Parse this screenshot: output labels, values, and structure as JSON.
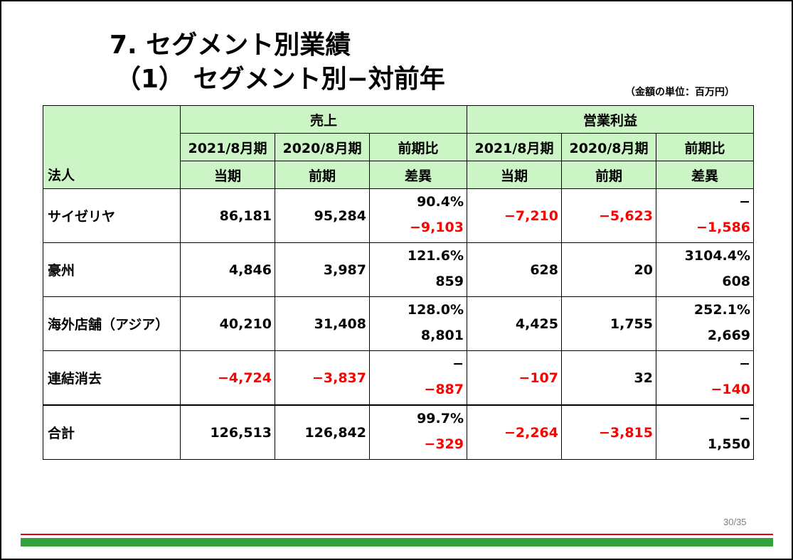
{
  "title": "7. セグメント別業績",
  "subtitle": "（1） セグメント別−対前年",
  "unit_note": "（金額の単位：百万円）",
  "header": {
    "corner": "法人",
    "group_sales": "売上",
    "group_profit": "営業利益",
    "sales": {
      "c1_l1": "2021/8月期",
      "c1_l2": "当期",
      "c2_l1": "2020/8月期",
      "c2_l2": "前期",
      "c3_l1": "前期比",
      "c3_l2": "差異"
    },
    "profit": {
      "c1_l1": "2021/8月期",
      "c1_l2": "当期",
      "c2_l1": "2020/8月期",
      "c2_l2": "前期",
      "c3_l1": "前期比",
      "c3_l2": "差異"
    }
  },
  "rows": [
    {
      "name": "サイゼリヤ",
      "sales_cur": "86,181",
      "sales_prev": "95,284",
      "sales_ratio": "90.4%",
      "sales_diff": "−9,103",
      "profit_cur": "−7,210",
      "profit_prev": "−5,623",
      "profit_ratio": "−",
      "profit_diff": "−1,586"
    },
    {
      "name": "豪州",
      "sales_cur": "4,846",
      "sales_prev": "3,987",
      "sales_ratio": "121.6%",
      "sales_diff": "859",
      "profit_cur": "628",
      "profit_prev": "20",
      "profit_ratio": "3104.4%",
      "profit_diff": "608"
    },
    {
      "name": "海外店舗（アジア）",
      "sales_cur": "40,210",
      "sales_prev": "31,408",
      "sales_ratio": "128.0%",
      "sales_diff": "8,801",
      "profit_cur": "4,425",
      "profit_prev": "1,755",
      "profit_ratio": "252.1%",
      "profit_diff": "2,669"
    },
    {
      "name": "連結消去",
      "sales_cur": "−4,724",
      "sales_prev": "−3,837",
      "sales_ratio": "−",
      "sales_diff": "−887",
      "profit_cur": "−107",
      "profit_prev": "32",
      "profit_ratio": "−",
      "profit_diff": "−140"
    },
    {
      "name": "合計",
      "sales_cur": "126,513",
      "sales_prev": "126,842",
      "sales_ratio": "99.7%",
      "sales_diff": "−329",
      "profit_cur": "−2,264",
      "profit_prev": "−3,815",
      "profit_ratio": "−",
      "profit_diff": "1,550"
    }
  ],
  "colors": {
    "header_bg": "#ccf5c5",
    "negative": "#ff0000",
    "footer_green": "#33a23c",
    "footer_red": "#e1000f"
  },
  "page_number": "30/35"
}
